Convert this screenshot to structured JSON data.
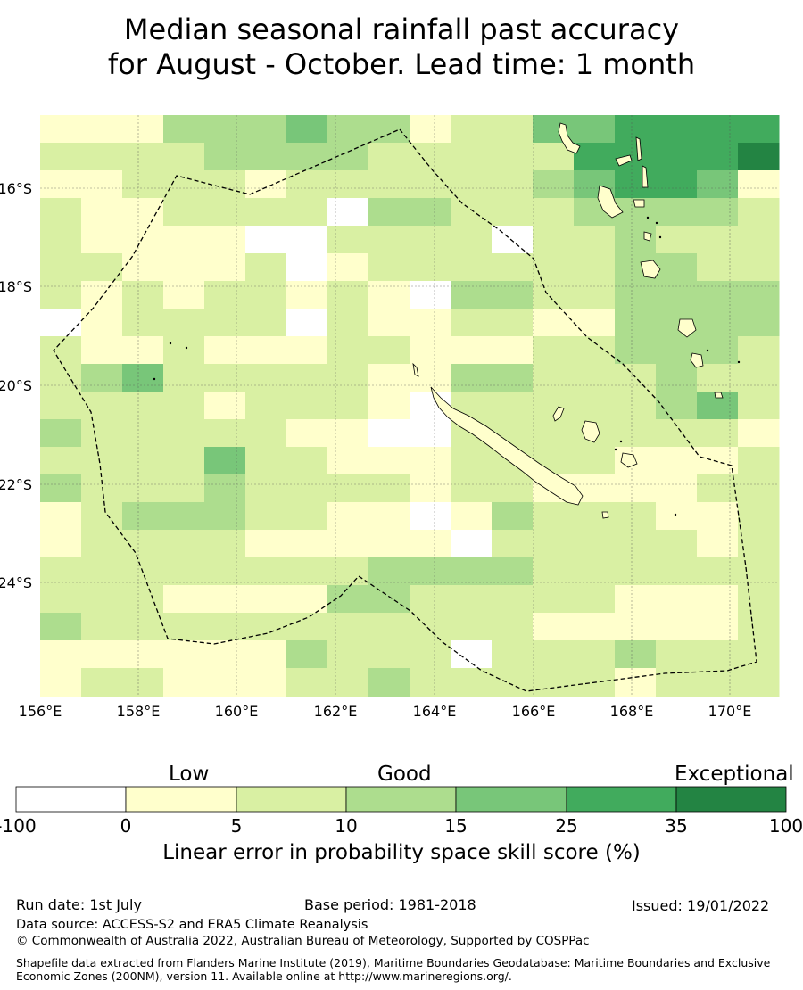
{
  "title": {
    "line1": "Median seasonal rainfall past accuracy",
    "line2": "for August - October. Lead time: 1 month"
  },
  "map": {
    "lon_range": [
      156,
      171
    ],
    "lat_range": [
      -14.3,
      -26.5
    ],
    "lon_ticks": [
      "156°E",
      "158°E",
      "160°E",
      "162°E",
      "164°E",
      "166°E",
      "168°E",
      "170°E"
    ],
    "lat_ticks": [
      "16°S",
      "18°S",
      "20°S",
      "22°S",
      "24°S"
    ],
    "grid": true
  },
  "colorbar": {
    "categories": [
      "Low",
      "Good",
      "Exceptional"
    ],
    "tick_labels": [
      "-100",
      "0",
      "5",
      "10",
      "15",
      "25",
      "35",
      "100"
    ],
    "colors": [
      "#ffffff",
      "#ffffcc",
      "#d9f0a3",
      "#addd8e",
      "#78c679",
      "#41ab5d",
      "#238443"
    ],
    "caption": "Linear error in probability space skill score (%)"
  },
  "footer": {
    "run_date": "Run date: 1st July",
    "base_period": "Base period: 1981-2018",
    "issued": "Issued: 19/01/2022",
    "data_source": "Data source: ACCESS-S2 and ERA5 Climate Reanalysis",
    "copyright": "© Commonwealth of Australia 2022, Australian Bureau of Meteorology, Supported by COSPPac",
    "shapefile": "Shapefile data extracted from Flanders Marine Institute (2019), Maritime Boundaries Geodatabase: Maritime Boundaries and Exclusive Economic Zones (200NM), version 11. Available online at http://www.marineregions.org/."
  }
}
